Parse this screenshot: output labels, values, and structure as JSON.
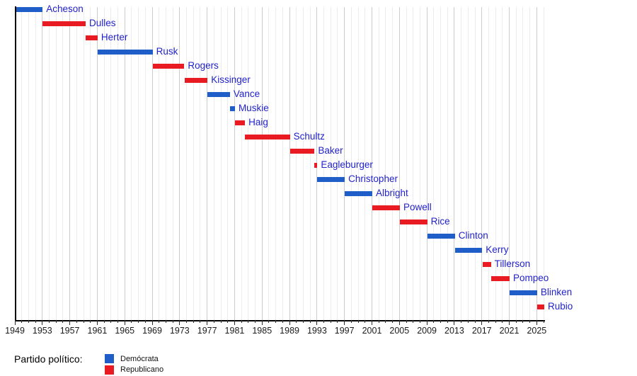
{
  "chart_data": {
    "type": "bar",
    "variant": "horizontal-gantt-timeline",
    "title": "",
    "xlabel": "",
    "ylabel": "",
    "grid": true,
    "x_axis": {
      "min": 1949,
      "max": 2026.2,
      "major_tick_interval": 4,
      "minor_tick_interval": 1,
      "tick_labels": [
        "1949",
        "1953",
        "1957",
        "1961",
        "1965",
        "1969",
        "1973",
        "1977",
        "1981",
        "1985",
        "1989",
        "1993",
        "1997",
        "2001",
        "2005",
        "2009",
        "2013",
        "2017",
        "2021",
        "2025"
      ]
    },
    "bars": [
      {
        "name": "Acheson",
        "party": "democrat",
        "start": 1949.06,
        "end": 1953.05
      },
      {
        "name": "Dulles",
        "party": "republican",
        "start": 1953.07,
        "end": 1959.31
      },
      {
        "name": "Herter",
        "party": "republican",
        "start": 1959.31,
        "end": 1961.05
      },
      {
        "name": "Rusk",
        "party": "democrat",
        "start": 1961.06,
        "end": 1969.06
      },
      {
        "name": "Rogers",
        "party": "republican",
        "start": 1969.07,
        "end": 1973.67
      },
      {
        "name": "Kissinger",
        "party": "republican",
        "start": 1973.73,
        "end": 1977.06
      },
      {
        "name": "Vance",
        "party": "democrat",
        "start": 1977.07,
        "end": 1980.32
      },
      {
        "name": "Muskie",
        "party": "democrat",
        "start": 1980.35,
        "end": 1981.05
      },
      {
        "name": "Haig",
        "party": "republican",
        "start": 1981.06,
        "end": 1982.51
      },
      {
        "name": "Schultz",
        "party": "republican",
        "start": 1982.54,
        "end": 1989.05
      },
      {
        "name": "Baker",
        "party": "republican",
        "start": 1989.07,
        "end": 1992.64
      },
      {
        "name": "Eagleburger",
        "party": "republican",
        "start": 1992.64,
        "end": 1993.05
      },
      {
        "name": "Christopher",
        "party": "democrat",
        "start": 1993.06,
        "end": 1997.05
      },
      {
        "name": "Albright",
        "party": "democrat",
        "start": 1997.07,
        "end": 2001.05
      },
      {
        "name": "Powell",
        "party": "republican",
        "start": 2001.06,
        "end": 2005.07
      },
      {
        "name": "Rice",
        "party": "republican",
        "start": 2005.07,
        "end": 2009.05
      },
      {
        "name": "Clinton",
        "party": "democrat",
        "start": 2009.06,
        "end": 2013.09
      },
      {
        "name": "Kerry",
        "party": "democrat",
        "start": 2013.09,
        "end": 2017.05
      },
      {
        "name": "Tillerson",
        "party": "republican",
        "start": 2017.09,
        "end": 2018.33
      },
      {
        "name": "Pompeo",
        "party": "republican",
        "start": 2018.33,
        "end": 2021.05
      },
      {
        "name": "Blinken",
        "party": "democrat",
        "start": 2021.07,
        "end": 2025.05
      },
      {
        "name": "Rubio",
        "party": "republican",
        "start": 2025.06,
        "end": 2026.1
      }
    ]
  },
  "legend": {
    "title": "Partido político:",
    "items": [
      {
        "label": "Demócrata",
        "party": "democrat",
        "color": "#1f5ec9"
      },
      {
        "label": "Republicano",
        "party": "republican",
        "color": "#e81b23"
      }
    ]
  },
  "colors": {
    "democrat": "#1f5ec9",
    "republican": "#e81b23",
    "bar_label": "#2222cc",
    "axis": "#000000",
    "tick_label": "#1b1b1b",
    "gridline_minor": "#ececec",
    "gridline_major": "#cdcdcd"
  }
}
